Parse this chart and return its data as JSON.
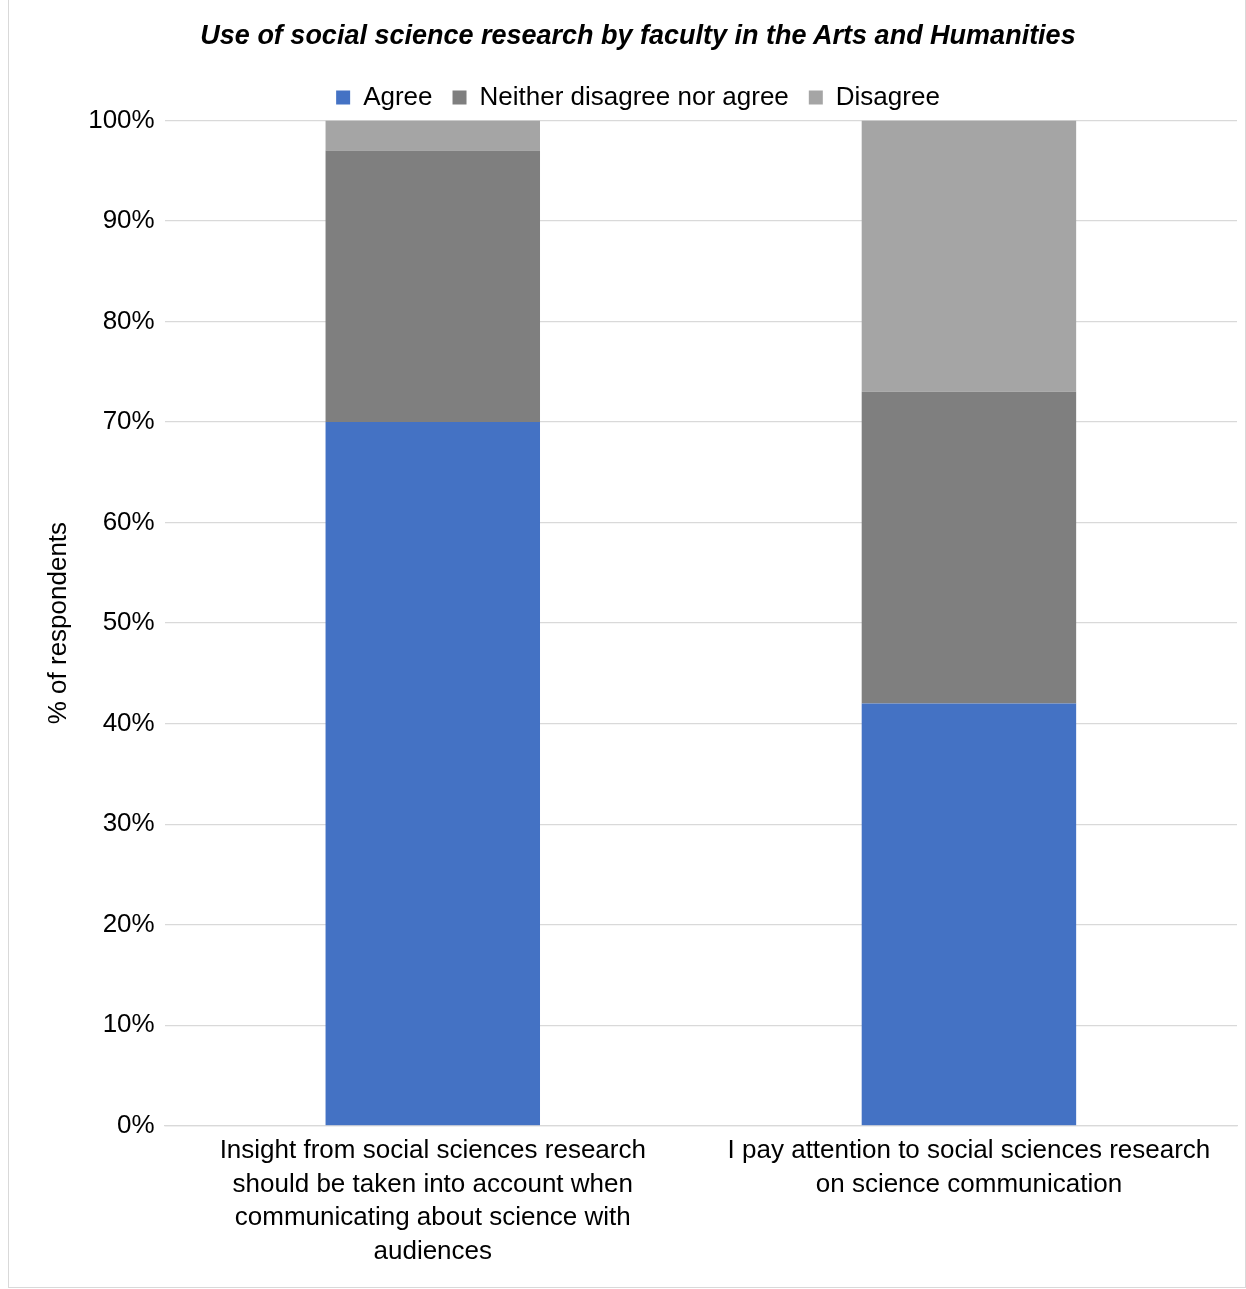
{
  "chart_data": {
    "type": "bar",
    "title": "Use of social science research by faculty in the Arts and Humanities",
    "ylabel": "% of respondents",
    "stacked": true,
    "legend": "top",
    "grid": "y",
    "categories": [
      "Insight from social sciences research should be taken into account when communicating about science with audiences",
      "I pay attention to social sciences research on science communication"
    ],
    "series": [
      {
        "name": "Agree",
        "color": "#4472c4",
        "values": [
          70,
          42
        ]
      },
      {
        "name": "Neither disagree nor agree",
        "color": "#7f7f7f",
        "values": [
          27,
          31
        ]
      },
      {
        "name": "Disagree",
        "color": "#a5a5a5",
        "values": [
          3,
          27
        ]
      }
    ],
    "ylim": [
      0,
      100
    ],
    "yticks": [
      {
        "value": 0,
        "label": "0%"
      },
      {
        "value": 10,
        "label": "10%"
      },
      {
        "value": 20,
        "label": "20%"
      },
      {
        "value": 30,
        "label": "30%"
      },
      {
        "value": 40,
        "label": "40%"
      },
      {
        "value": 50,
        "label": "50%"
      },
      {
        "value": 60,
        "label": "60%"
      },
      {
        "value": 70,
        "label": "70%"
      },
      {
        "value": 80,
        "label": "80%"
      },
      {
        "value": 90,
        "label": "90%"
      },
      {
        "value": 100,
        "label": "100%"
      }
    ]
  }
}
